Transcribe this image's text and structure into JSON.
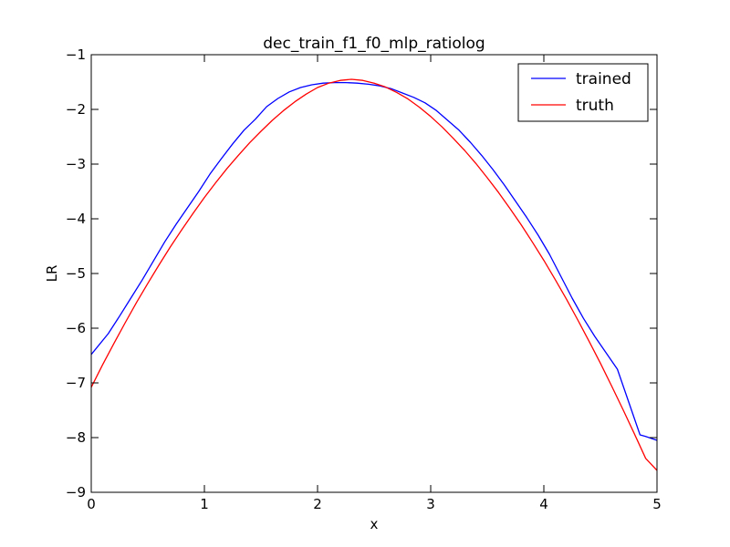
{
  "chart_data": {
    "type": "line",
    "title": "dec_train_f1_f0_mlp_ratiolog",
    "xlabel": "x",
    "ylabel": "LR",
    "xlim": [
      0,
      5
    ],
    "ylim": [
      -9,
      -1
    ],
    "xticks": [
      0,
      1,
      2,
      3,
      4,
      5
    ],
    "yticks": [
      -9,
      -8,
      -7,
      -6,
      -5,
      -4,
      -3,
      -2,
      -1
    ],
    "xtick_labels": [
      "0",
      "1",
      "2",
      "3",
      "4",
      "5"
    ],
    "ytick_labels": [
      "−9",
      "−8",
      "−7",
      "−6",
      "−5",
      "−4",
      "−3",
      "−2",
      "−1"
    ],
    "grid": false,
    "legend_position": "top-right",
    "series": [
      {
        "name": "trained",
        "color": "#0000ff",
        "x": [
          0.0,
          0.15,
          0.25,
          0.35,
          0.45,
          0.55,
          0.65,
          0.75,
          0.85,
          0.95,
          1.05,
          1.15,
          1.25,
          1.35,
          1.45,
          1.55,
          1.65,
          1.75,
          1.85,
          1.95,
          2.05,
          2.15,
          2.25,
          2.35,
          2.45,
          2.55,
          2.65,
          2.75,
          2.85,
          2.95,
          3.05,
          3.15,
          3.25,
          3.35,
          3.45,
          3.55,
          3.65,
          3.75,
          3.85,
          3.95,
          4.05,
          4.15,
          4.25,
          4.35,
          4.45,
          4.55,
          4.65,
          4.75,
          4.85,
          4.9,
          5.0
        ],
        "y": [
          -6.48,
          -6.1,
          -5.78,
          -5.45,
          -5.12,
          -4.77,
          -4.42,
          -4.1,
          -3.8,
          -3.5,
          -3.18,
          -2.9,
          -2.63,
          -2.38,
          -2.18,
          -1.95,
          -1.8,
          -1.68,
          -1.6,
          -1.55,
          -1.52,
          -1.51,
          -1.51,
          -1.52,
          -1.54,
          -1.57,
          -1.62,
          -1.7,
          -1.78,
          -1.88,
          -2.02,
          -2.2,
          -2.38,
          -2.6,
          -2.84,
          -3.1,
          -3.38,
          -3.68,
          -3.98,
          -4.3,
          -4.65,
          -5.05,
          -5.45,
          -5.82,
          -6.15,
          -6.45,
          -6.75,
          -7.35,
          -7.95,
          -7.98,
          -8.05
        ]
      },
      {
        "name": "truth",
        "color": "#ff0000",
        "formula_note": "",
        "x": [
          0.0,
          0.1,
          0.2,
          0.3,
          0.4,
          0.5,
          0.6,
          0.7,
          0.8,
          0.9,
          1.0,
          1.1,
          1.2,
          1.3,
          1.4,
          1.5,
          1.6,
          1.7,
          1.8,
          1.9,
          2.0,
          2.1,
          2.2,
          2.3,
          2.4,
          2.5,
          2.6,
          2.7,
          2.8,
          2.9,
          3.0,
          3.1,
          3.2,
          3.3,
          3.4,
          3.5,
          3.6,
          3.7,
          3.8,
          3.9,
          4.0,
          4.1,
          4.2,
          4.3,
          4.4,
          4.5,
          4.6,
          4.7,
          4.8,
          4.9,
          5.0
        ],
        "y": [
          -7.08,
          -6.67,
          -6.28,
          -5.9,
          -5.53,
          -5.18,
          -4.84,
          -4.51,
          -4.2,
          -3.9,
          -3.61,
          -3.34,
          -3.08,
          -2.84,
          -2.61,
          -2.4,
          -2.2,
          -2.02,
          -1.86,
          -1.72,
          -1.6,
          -1.52,
          -1.47,
          -1.45,
          -1.47,
          -1.52,
          -1.59,
          -1.69,
          -1.81,
          -1.96,
          -2.13,
          -2.32,
          -2.53,
          -2.75,
          -2.99,
          -3.25,
          -3.52,
          -3.81,
          -4.11,
          -4.43,
          -4.76,
          -5.11,
          -5.47,
          -5.85,
          -6.24,
          -6.64,
          -7.06,
          -7.49,
          -7.93,
          -8.38,
          -8.6
        ]
      }
    ]
  }
}
